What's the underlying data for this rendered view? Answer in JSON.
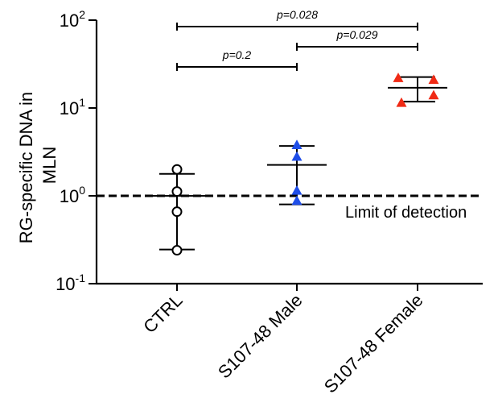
{
  "chart_data": {
    "type": "scatter",
    "y_scale": "log",
    "ylim": [
      0.1,
      100
    ],
    "ylabel": "RG-specific DNA in MLN",
    "y_ticks": [
      {
        "value": 100,
        "base": "10",
        "exp": "2"
      },
      {
        "value": 10,
        "base": "10",
        "exp": "1"
      },
      {
        "value": 1,
        "base": "10",
        "exp": "0"
      },
      {
        "value": 0.1,
        "base": "10",
        "exp": "-1"
      }
    ],
    "categories": [
      "CTRL",
      "S107-48 Male",
      "S107-48 Female"
    ],
    "groups": [
      {
        "category": "CTRL",
        "marker": "open-circle",
        "color": "#000000",
        "points": [
          2.0,
          1.12,
          0.66,
          0.24
        ],
        "center": 1.0,
        "error_low": 0.245,
        "error_high": 1.78
      },
      {
        "category": "S107-48 Male",
        "marker": "triangle",
        "color": "#1f4ee8",
        "points": [
          3.8,
          2.8,
          1.15,
          0.88
        ],
        "center": 2.25,
        "error_low": 0.8,
        "error_high": 3.7
      },
      {
        "category": "S107-48 Female",
        "marker": "triangle",
        "color": "#f02a15",
        "points": [
          22,
          21,
          14,
          11.5
        ],
        "center": 17,
        "error_low": 11.8,
        "error_high": 22.5
      }
    ],
    "reference_line": {
      "value": 1.0,
      "label": "Limit of detection",
      "style": "dashed"
    },
    "significance": [
      {
        "from": 0,
        "to": 2,
        "label": "p=0.028"
      },
      {
        "from": 1,
        "to": 2,
        "label": "p=0.029"
      },
      {
        "from": 0,
        "to": 1,
        "label": "p=0.2"
      }
    ]
  }
}
